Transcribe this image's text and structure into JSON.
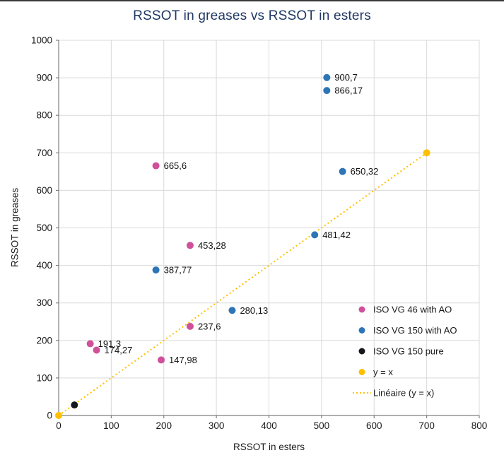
{
  "chart_data": {
    "type": "scatter",
    "title": "RSSOT in greases vs RSSOT in esters",
    "xlabel": "RSSOT in esters",
    "ylabel": "RSSOT in greases",
    "xlim": [
      0,
      800
    ],
    "ylim": [
      0,
      1000
    ],
    "xticks": [
      0,
      100,
      200,
      300,
      400,
      500,
      600,
      700,
      800
    ],
    "yticks": [
      0,
      100,
      200,
      300,
      400,
      500,
      600,
      700,
      800,
      900,
      1000
    ],
    "grid": true,
    "legend_position": "inside bottom-right",
    "colors": {
      "title": "#1f3864",
      "grid": "#d9d9d9",
      "axis": "#808080",
      "tick_text": "#1a1a1a",
      "label_text": "#111111",
      "legend_text": "#1a1a1a"
    },
    "series": [
      {
        "name": "ISO VG 46 with AO",
        "color": "#d0509a",
        "points": [
          {
            "x": 60,
            "y": 191.3,
            "label": "191,3"
          },
          {
            "x": 72,
            "y": 174.27,
            "label": "174,27"
          },
          {
            "x": 185,
            "y": 665.6,
            "label": "665,6"
          },
          {
            "x": 250,
            "y": 453.28,
            "label": "453,28"
          },
          {
            "x": 250,
            "y": 237.6,
            "label": "237,6"
          },
          {
            "x": 195,
            "y": 147.98,
            "label": "147,98"
          }
        ]
      },
      {
        "name": "ISO VG 150 with AO",
        "color": "#2e75b6",
        "points": [
          {
            "x": 510,
            "y": 900.7,
            "label": "900,7"
          },
          {
            "x": 510,
            "y": 866.17,
            "label": "866,17"
          },
          {
            "x": 540,
            "y": 650.32,
            "label": "650,32"
          },
          {
            "x": 487,
            "y": 481.42,
            "label": "481,42"
          },
          {
            "x": 185,
            "y": 387.77,
            "label": "387,77"
          },
          {
            "x": 330,
            "y": 280.13,
            "label": "280,13"
          }
        ]
      },
      {
        "name": "ISO VG 150 pure",
        "color": "#16161d",
        "points": [
          {
            "x": 30,
            "y": 28,
            "label": ""
          }
        ]
      },
      {
        "name": "y = x",
        "color": "#ffc000",
        "points": [
          {
            "x": 0,
            "y": 0,
            "label": ""
          },
          {
            "x": 700,
            "y": 700,
            "label": ""
          }
        ]
      }
    ],
    "trendline": {
      "name": "Linéaire (y = x)",
      "color": "#ffc000",
      "style": "dotted",
      "from": {
        "x": 0,
        "y": 0
      },
      "to": {
        "x": 700,
        "y": 700
      }
    },
    "legend": [
      {
        "label": "ISO VG 46 with AO",
        "marker": "dot",
        "color": "#d0509a"
      },
      {
        "label": "ISO VG 150 with AO",
        "marker": "dot",
        "color": "#2e75b6"
      },
      {
        "label": "ISO VG 150 pure",
        "marker": "dot",
        "color": "#16161d"
      },
      {
        "label": "y = x",
        "marker": "dot",
        "color": "#ffc000"
      },
      {
        "label": "Linéaire (y = x)",
        "marker": "dotted-line",
        "color": "#ffc000"
      }
    ]
  }
}
